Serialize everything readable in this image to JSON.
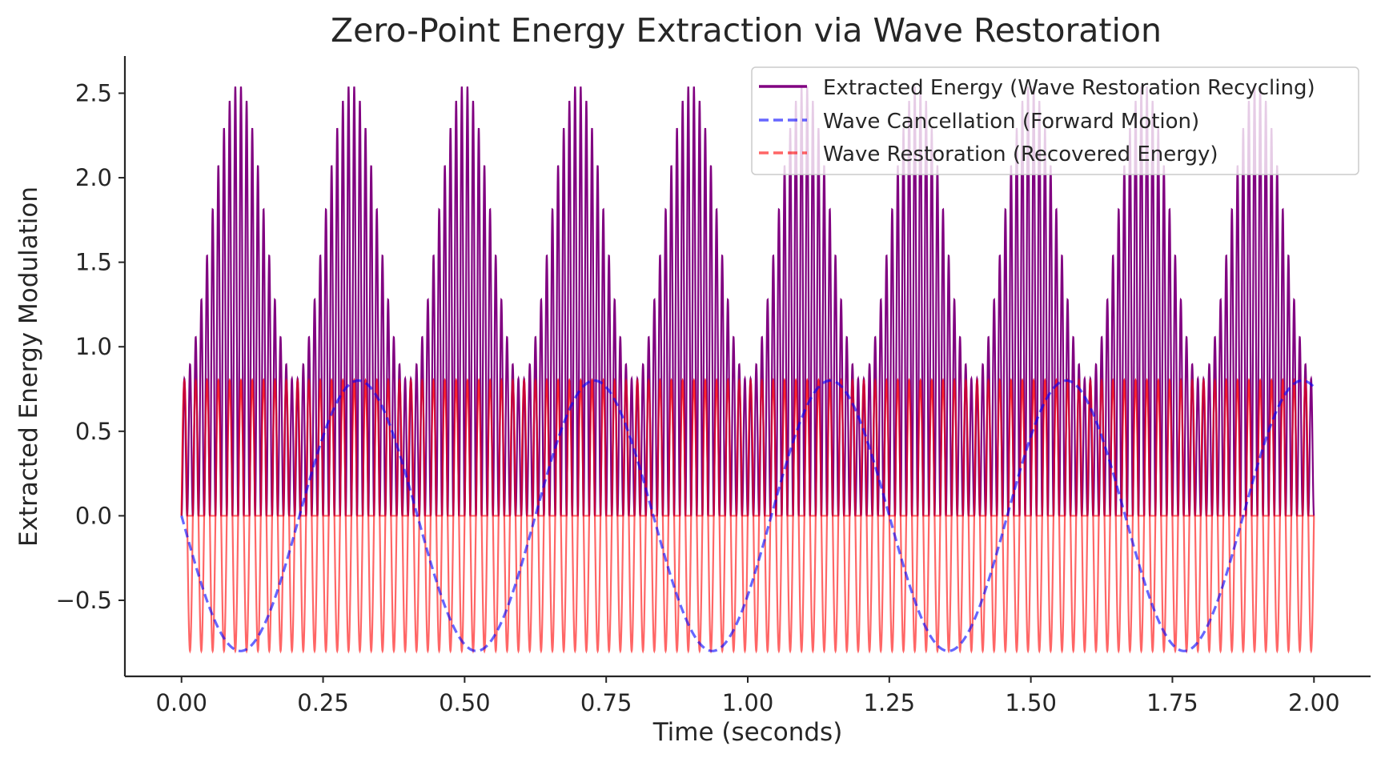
{
  "chart_data": {
    "type": "line",
    "title": "Zero-Point Energy Extraction via Wave Restoration",
    "xlabel": "Time (seconds)",
    "ylabel": "Extracted Energy Modulation",
    "xlim": [
      -0.1,
      2.1
    ],
    "ylim": [
      -0.95,
      2.72
    ],
    "xticks": [
      0.0,
      0.25,
      0.5,
      0.75,
      1.0,
      1.25,
      1.5,
      1.75,
      2.0
    ],
    "xtick_labels": [
      "0.00",
      "0.25",
      "0.50",
      "0.75",
      "1.00",
      "1.25",
      "1.50",
      "1.75",
      "2.00"
    ],
    "yticks": [
      -0.5,
      0.0,
      0.5,
      1.0,
      1.5,
      2.0,
      2.5
    ],
    "ytick_labels": [
      "−0.5",
      "0.0",
      "0.5",
      "1.0",
      "1.5",
      "2.0",
      "2.5"
    ],
    "grid": false,
    "legend_position": "top-right",
    "series": [
      {
        "name": "Extracted Energy (Wave Restoration Recycling)",
        "color": "#800080",
        "style": "solid",
        "t_start": 0.0,
        "t_end": 2.0,
        "carrier_cycles": 200,
        "envelope_peaks": [
          0.1,
          0.3,
          0.5,
          0.7,
          0.9,
          1.1,
          1.3,
          1.5,
          1.7,
          1.9
        ],
        "peak_value": 2.55,
        "baseline_value": 0.8,
        "min_value": 0.0
      },
      {
        "name": "Wave Cancellation (Forward Motion)",
        "color": "#0000ff",
        "style": "dashed",
        "t_start": 0.0,
        "t_end": 2.0,
        "amplitude": 0.8,
        "frequency_hz": 2.4,
        "phase": "negative-sine"
      },
      {
        "name": "Wave Restoration (Recovered Energy)",
        "color": "#ff0000",
        "style": "dashed",
        "t_start": 0.0,
        "t_end": 2.0,
        "amplitude": 0.8,
        "carrier_cycles": 100
      }
    ]
  }
}
